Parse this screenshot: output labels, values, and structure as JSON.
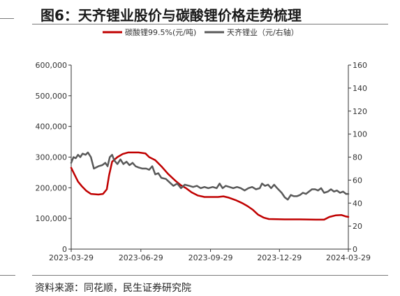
{
  "header": {
    "title": "图6：天齐锂业股价与碳酸锂价格走势梳理"
  },
  "footer": {
    "source": "资料来源：同花顺，民生证券研究院"
  },
  "colors": {
    "lithium_carbonate": "#c00000",
    "tianqi": "#595959",
    "axis": "#333333",
    "rule": "#7a7a7a"
  },
  "chart_data": {
    "type": "line",
    "title": "",
    "xlabel": "",
    "ylabel": "",
    "legend_position": "top",
    "grid": false,
    "x_range": [
      "2023-03-29",
      "2024-03-29"
    ],
    "x_ticks": [
      "2023-03-29",
      "2023-06-29",
      "2023-09-29",
      "2023-12-29",
      "2024-03-29"
    ],
    "y_left": {
      "range": [
        0,
        600000
      ],
      "ticks": [
        0,
        100000,
        200000,
        300000,
        400000,
        500000,
        600000
      ],
      "tick_labels": [
        "0",
        "100,000",
        "200,000",
        "300,000",
        "400,000",
        "500,000",
        "600,000"
      ]
    },
    "y_right": {
      "range": [
        0,
        160
      ],
      "ticks": [
        0,
        20,
        40,
        60,
        80,
        100,
        120,
        140,
        160
      ],
      "tick_labels": [
        "0",
        "20",
        "40",
        "60",
        "80",
        "100",
        "120",
        "140",
        "160"
      ]
    },
    "series": [
      {
        "name": "碳酸锂99.5%(元/吨)",
        "axis": "left",
        "color": "#c00000",
        "points": [
          [
            "2023-03-29",
            265000
          ],
          [
            "2023-04-03",
            240000
          ],
          [
            "2023-04-07",
            220000
          ],
          [
            "2023-04-12",
            205000
          ],
          [
            "2023-04-18",
            190000
          ],
          [
            "2023-04-24",
            180000
          ],
          [
            "2023-05-04",
            178000
          ],
          [
            "2023-05-10",
            180000
          ],
          [
            "2023-05-15",
            195000
          ],
          [
            "2023-05-18",
            240000
          ],
          [
            "2023-05-22",
            285000
          ],
          [
            "2023-05-29",
            300000
          ],
          [
            "2023-06-05",
            310000
          ],
          [
            "2023-06-12",
            315000
          ],
          [
            "2023-06-26",
            315000
          ],
          [
            "2023-07-05",
            312000
          ],
          [
            "2023-07-10",
            300000
          ],
          [
            "2023-07-18",
            290000
          ],
          [
            "2023-07-26",
            270000
          ],
          [
            "2023-08-04",
            245000
          ],
          [
            "2023-08-14",
            222000
          ],
          [
            "2023-08-21",
            208000
          ],
          [
            "2023-08-28",
            198000
          ],
          [
            "2023-09-04",
            185000
          ],
          [
            "2023-09-12",
            175000
          ],
          [
            "2023-09-21",
            170000
          ],
          [
            "2023-10-09",
            170000
          ],
          [
            "2023-10-16",
            172000
          ],
          [
            "2023-10-23",
            168000
          ],
          [
            "2023-11-01",
            160000
          ],
          [
            "2023-11-10",
            150000
          ],
          [
            "2023-11-17",
            140000
          ],
          [
            "2023-11-24",
            128000
          ],
          [
            "2023-12-01",
            112000
          ],
          [
            "2023-12-08",
            103000
          ],
          [
            "2023-12-15",
            98000
          ],
          [
            "2024-01-05",
            97000
          ],
          [
            "2024-01-25",
            97000
          ],
          [
            "2024-02-15",
            96000
          ],
          [
            "2024-02-26",
            96000
          ],
          [
            "2024-03-04",
            105000
          ],
          [
            "2024-03-12",
            110000
          ],
          [
            "2024-03-20",
            111000
          ],
          [
            "2024-03-25",
            107000
          ],
          [
            "2024-03-29",
            105000
          ]
        ]
      },
      {
        "name": "天齐锂业（元/右轴）",
        "axis": "right",
        "color": "#595959",
        "points": [
          [
            "2023-03-29",
            75
          ],
          [
            "2023-04-01",
            80
          ],
          [
            "2023-04-04",
            79
          ],
          [
            "2023-04-07",
            82
          ],
          [
            "2023-04-10",
            80
          ],
          [
            "2023-04-13",
            83
          ],
          [
            "2023-04-17",
            82
          ],
          [
            "2023-04-20",
            84
          ],
          [
            "2023-04-24",
            80
          ],
          [
            "2023-04-28",
            70
          ],
          [
            "2023-05-04",
            72
          ],
          [
            "2023-05-09",
            73
          ],
          [
            "2023-05-13",
            75
          ],
          [
            "2023-05-16",
            72
          ],
          [
            "2023-05-19",
            80
          ],
          [
            "2023-05-22",
            82
          ],
          [
            "2023-05-25",
            77
          ],
          [
            "2023-05-29",
            74
          ],
          [
            "2023-06-02",
            78
          ],
          [
            "2023-06-06",
            74
          ],
          [
            "2023-06-10",
            76
          ],
          [
            "2023-06-14",
            73
          ],
          [
            "2023-06-18",
            75
          ],
          [
            "2023-06-22",
            72
          ],
          [
            "2023-06-26",
            71
          ],
          [
            "2023-07-01",
            70
          ],
          [
            "2023-07-06",
            70
          ],
          [
            "2023-07-10",
            69
          ],
          [
            "2023-07-14",
            72
          ],
          [
            "2023-07-18",
            65
          ],
          [
            "2023-07-22",
            66
          ],
          [
            "2023-07-26",
            62
          ],
          [
            "2023-08-01",
            61
          ],
          [
            "2023-08-06",
            58
          ],
          [
            "2023-08-11",
            55
          ],
          [
            "2023-08-16",
            57
          ],
          [
            "2023-08-21",
            53
          ],
          [
            "2023-08-26",
            56
          ],
          [
            "2023-09-01",
            55
          ],
          [
            "2023-09-06",
            54
          ],
          [
            "2023-09-11",
            55
          ],
          [
            "2023-09-16",
            53
          ],
          [
            "2023-09-21",
            54
          ],
          [
            "2023-09-26",
            53
          ],
          [
            "2023-10-02",
            54
          ],
          [
            "2023-10-07",
            53
          ],
          [
            "2023-10-11",
            57
          ],
          [
            "2023-10-15",
            53
          ],
          [
            "2023-10-19",
            55
          ],
          [
            "2023-10-24",
            54
          ],
          [
            "2023-10-29",
            53
          ],
          [
            "2023-11-03",
            54
          ],
          [
            "2023-11-08",
            53
          ],
          [
            "2023-11-13",
            51
          ],
          [
            "2023-11-18",
            53
          ],
          [
            "2023-11-23",
            54
          ],
          [
            "2023-11-28",
            52
          ],
          [
            "2023-12-03",
            53
          ],
          [
            "2023-12-06",
            57
          ],
          [
            "2023-12-10",
            55
          ],
          [
            "2023-12-14",
            56
          ],
          [
            "2023-12-18",
            53
          ],
          [
            "2023-12-22",
            56
          ],
          [
            "2023-12-26",
            53
          ],
          [
            "2024-01-01",
            49
          ],
          [
            "2024-01-05",
            45
          ],
          [
            "2024-01-09",
            43
          ],
          [
            "2024-01-13",
            47
          ],
          [
            "2024-01-17",
            46
          ],
          [
            "2024-01-21",
            46
          ],
          [
            "2024-01-25",
            47
          ],
          [
            "2024-01-29",
            49
          ],
          [
            "2024-02-02",
            48
          ],
          [
            "2024-02-06",
            50
          ],
          [
            "2024-02-10",
            52
          ],
          [
            "2024-02-14",
            52
          ],
          [
            "2024-02-18",
            51
          ],
          [
            "2024-02-22",
            53
          ],
          [
            "2024-02-26",
            49
          ],
          [
            "2024-03-02",
            50
          ],
          [
            "2024-03-06",
            52
          ],
          [
            "2024-03-10",
            50
          ],
          [
            "2024-03-14",
            51
          ],
          [
            "2024-03-18",
            49
          ],
          [
            "2024-03-22",
            50
          ],
          [
            "2024-03-26",
            48
          ],
          [
            "2024-03-29",
            48
          ]
        ]
      }
    ]
  }
}
